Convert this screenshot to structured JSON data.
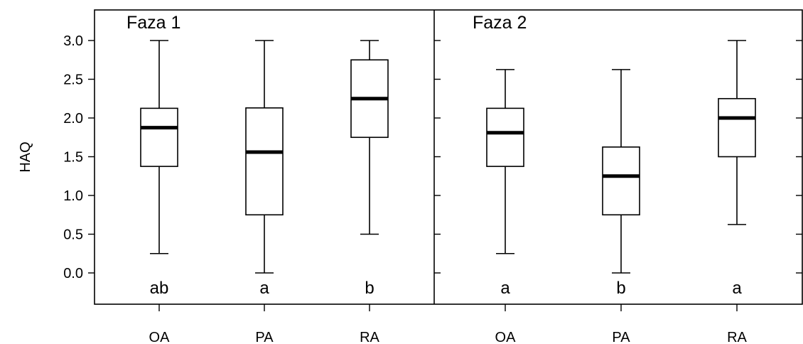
{
  "chart_data": {
    "type": "boxplot",
    "ylabel": "HAQ",
    "ylim": [
      -0.4,
      3.4
    ],
    "yticks": [
      "0.0",
      "0.5",
      "1.0",
      "1.5",
      "2.0",
      "2.5",
      "3.0"
    ],
    "panels": [
      {
        "title": "Faza 1",
        "groups": [
          {
            "category": "OA",
            "whisker_low": 0.25,
            "q1": 1.375,
            "median": 1.875,
            "q3": 2.125,
            "whisker_high": 3.0,
            "label": "ab"
          },
          {
            "category": "PA",
            "whisker_low": 0.0,
            "q1": 0.75,
            "median": 1.56,
            "q3": 2.13,
            "whisker_high": 3.0,
            "label": "a"
          },
          {
            "category": "RA",
            "whisker_low": 0.5,
            "q1": 1.75,
            "median": 2.25,
            "q3": 2.75,
            "whisker_high": 3.0,
            "label": "b"
          }
        ]
      },
      {
        "title": "Faza 2",
        "groups": [
          {
            "category": "OA",
            "whisker_low": 0.25,
            "q1": 1.375,
            "median": 1.81,
            "q3": 2.125,
            "whisker_high": 2.625,
            "label": "a"
          },
          {
            "category": "PA",
            "whisker_low": 0.0,
            "q1": 0.75,
            "median": 1.25,
            "q3": 1.625,
            "whisker_high": 2.625,
            "label": "b"
          },
          {
            "category": "RA",
            "whisker_low": 0.625,
            "q1": 1.5,
            "median": 2.0,
            "q3": 2.25,
            "whisker_high": 3.0,
            "label": "a"
          }
        ]
      }
    ]
  }
}
